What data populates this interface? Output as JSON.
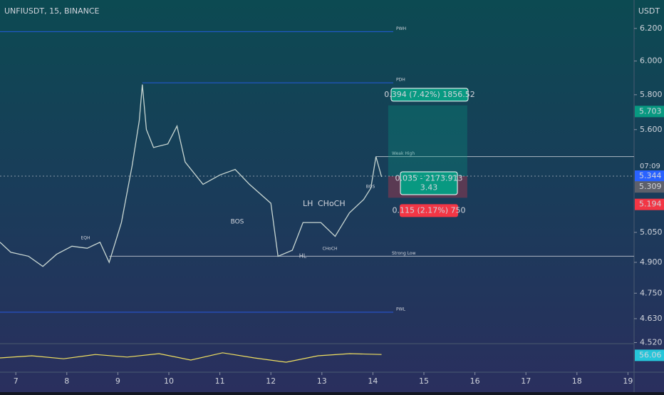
{
  "chart_data": {
    "type": "line",
    "title": "UNFIUSDT, 15, BINANCE",
    "y_axis_label": "USDT",
    "log_scale": true,
    "color": "#c8d6d2",
    "x": [
      6.69,
      6.9,
      7.25,
      7.53,
      7.8,
      8.1,
      8.4,
      8.65,
      8.83,
      9.07,
      9.28,
      9.42,
      9.48,
      9.56,
      9.7,
      9.98,
      10.16,
      10.32,
      10.67,
      11.0,
      11.3,
      11.58,
      12.0,
      12.14,
      12.42,
      12.63,
      12.98,
      13.26,
      13.54,
      13.82,
      13.96,
      14.06,
      14.17
    ],
    "values": [
      5.0,
      4.95,
      4.93,
      4.88,
      4.94,
      4.98,
      4.97,
      5.0,
      4.9,
      5.1,
      5.4,
      5.65,
      5.86,
      5.6,
      5.5,
      5.52,
      5.62,
      5.42,
      5.3,
      5.35,
      5.38,
      5.3,
      5.2,
      4.93,
      4.96,
      5.1,
      5.1,
      5.03,
      5.15,
      5.22,
      5.28,
      5.45,
      5.34
    ],
    "xlim": [
      6.69,
      19.12
    ],
    "xticks": [
      7,
      8,
      9,
      10,
      11,
      12,
      13,
      14,
      15,
      16,
      17,
      18,
      19
    ],
    "ylim": [
      4.515,
      6.38
    ],
    "yticks": [
      {
        "value": 6.2,
        "label": "6.200"
      },
      {
        "value": 6.0,
        "label": "6.000"
      },
      {
        "value": 5.8,
        "label": "5.800"
      },
      {
        "value": 5.6,
        "label": "5.600"
      },
      {
        "value": 5.05,
        "label": "5.050"
      },
      {
        "value": 4.9,
        "label": "4.900"
      },
      {
        "value": 4.75,
        "label": "4.750"
      },
      {
        "value": 4.63,
        "label": "4.630"
      },
      {
        "value": 4.52,
        "label": "4.520"
      }
    ],
    "price_badges": [
      {
        "value": 5.703,
        "label": "5.703",
        "color": "#089981"
      },
      {
        "value": 5.344,
        "label": "5.344",
        "color": "#2962ff"
      },
      {
        "value": 5.309,
        "label": "5.309",
        "color": "#5d606b"
      },
      {
        "value": 5.194,
        "label": "5.194",
        "color": "#f23645"
      }
    ],
    "countdown": "07:09",
    "levels": [
      {
        "name": "PWH",
        "value": 6.18,
        "from": 6.69,
        "to": 14.4,
        "color": "#2962ff"
      },
      {
        "name": "PDH",
        "value": 5.87,
        "from": 9.48,
        "to": 14.4,
        "color": "#2962ff"
      },
      {
        "name": "PWL",
        "value": 4.66,
        "from": 6.69,
        "to": 14.4,
        "color": "#2962ff"
      },
      {
        "name": "Weak High",
        "value": 5.45,
        "from": 14.06,
        "to": 19.12,
        "color": "#d1d4dc"
      },
      {
        "name": "Strong Low",
        "value": 4.93,
        "from": 8.83,
        "to": 19.12,
        "color": "#d1d4dc"
      }
    ],
    "position": {
      "entry": 5.344,
      "target": 5.738,
      "stop": 5.229,
      "from": 14.3,
      "to": 15.85,
      "target_label": "0.394 (7.42%) 1856.52",
      "entry_label": "0.035 - 2173.913",
      "ratio_label": "3.43",
      "stop_label": "0.115 (2.17%) 750"
    },
    "annotations": [
      "LH",
      "CHoCH",
      "BOS",
      "EQH",
      "HL",
      "BOS",
      "CHoCH"
    ],
    "oscillator": {
      "values": [
        50,
        55,
        48,
        58,
        52,
        60,
        45,
        62,
        50,
        40,
        55,
        60,
        58
      ],
      "ylim": [
        20,
        80
      ],
      "color": "#f0e060",
      "last": 56.06
    }
  }
}
